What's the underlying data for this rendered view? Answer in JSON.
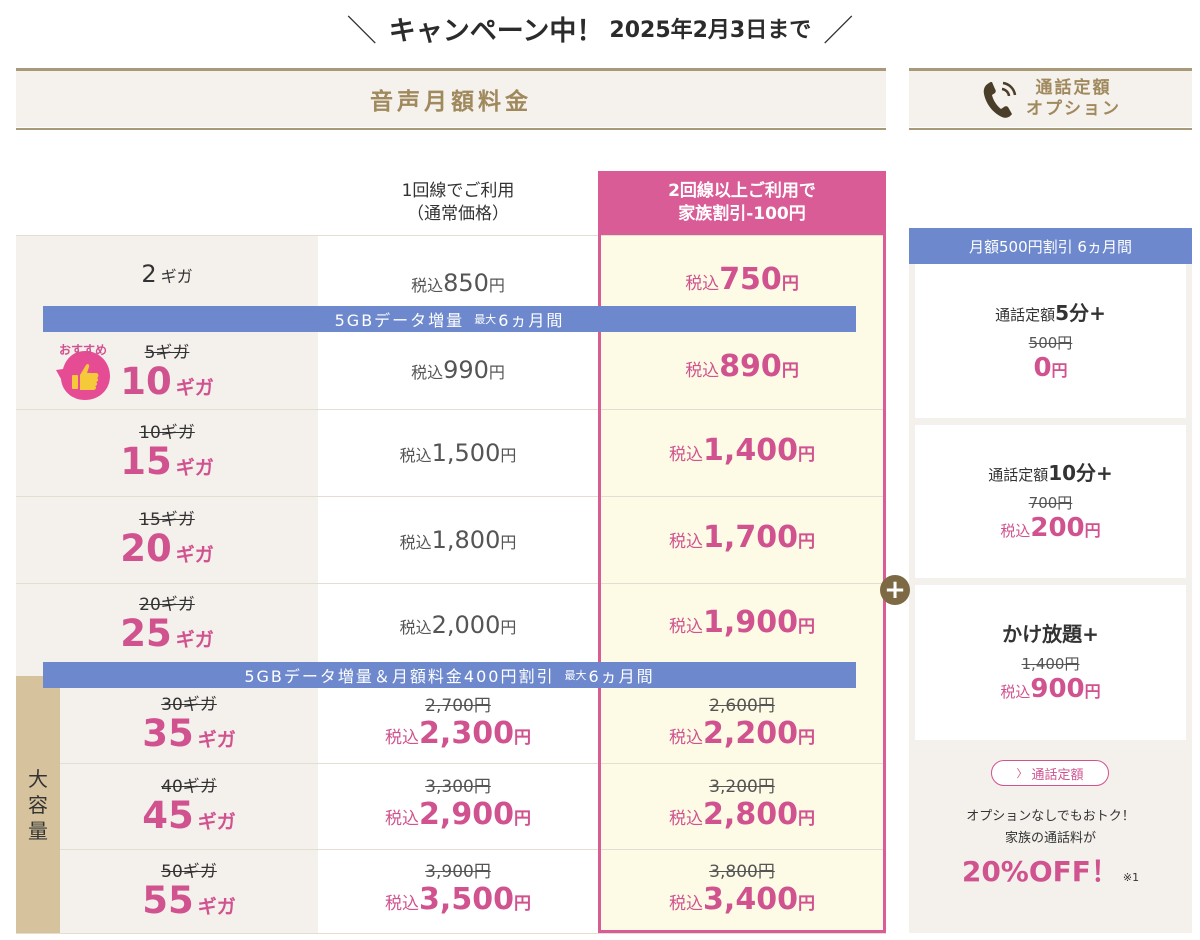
{
  "campaign": {
    "slash_left": "＼",
    "text": "キャンペーン中！",
    "date": "2025年2月3日まで",
    "slash_right": "／"
  },
  "headers": {
    "plan": "音声月額料金",
    "option_line1": "通話定額",
    "option_line2": "オプション"
  },
  "columns": {
    "single_line1": "1回線でご利用",
    "single_line2": "（通常価格）",
    "family_line1": "2回線以上ご利用で",
    "family_line2": "家族割引-100円"
  },
  "banners": {
    "b1_main": "5GBデータ増量",
    "b1_small": "最大",
    "b1_tail": "6ヵ月間",
    "b2_main": "5GBデータ増量＆月額料金400円割引",
    "b2_small": "最大",
    "b2_tail": "6ヵ月間"
  },
  "labels": {
    "recommend": "おすすめ",
    "large": [
      "大",
      "容",
      "量"
    ],
    "tax_in": "税込",
    "yen": "円",
    "giga": "ギガ"
  },
  "plans": [
    {
      "old_gb": "",
      "gb": "2",
      "price": "850",
      "price_old": "",
      "family": "750",
      "family_old": ""
    },
    {
      "old_gb": "5ギガ",
      "gb": "10",
      "price": "990",
      "price_old": "",
      "family": "890",
      "family_old": ""
    },
    {
      "old_gb": "10ギガ",
      "gb": "15",
      "price": "1,500",
      "price_old": "",
      "family": "1,400",
      "family_old": ""
    },
    {
      "old_gb": "15ギガ",
      "gb": "20",
      "price": "1,800",
      "price_old": "",
      "family": "1,700",
      "family_old": ""
    },
    {
      "old_gb": "20ギガ",
      "gb": "25",
      "price": "2,000",
      "price_old": "",
      "family": "1,900",
      "family_old": ""
    },
    {
      "old_gb": "30ギガ",
      "gb": "35",
      "price": "2,300",
      "price_old": "2,700円",
      "family": "2,200",
      "family_old": "2,600円"
    },
    {
      "old_gb": "40ギガ",
      "gb": "45",
      "price": "2,900",
      "price_old": "3,300円",
      "family": "2,800",
      "family_old": "3,200円"
    },
    {
      "old_gb": "50ギガ",
      "gb": "55",
      "price": "3,500",
      "price_old": "3,900円",
      "family": "3,400",
      "family_old": "3,800円"
    }
  ],
  "options": {
    "tag": "月額500円割引 6ヵ月間",
    "items": [
      {
        "name_pre": "通話定額",
        "name_bold": "5分+",
        "old": "500円",
        "tax": "",
        "price": "0",
        "unit": "円"
      },
      {
        "name_pre": "通話定額",
        "name_bold": "10分+",
        "old": "700円",
        "tax": "税込",
        "price": "200",
        "unit": "円"
      },
      {
        "name_pre": "",
        "name_bold": "かけ放題+",
        "old": "1,400円",
        "tax": "税込",
        "price": "900",
        "unit": "円"
      }
    ],
    "plus": "+",
    "teigaku_button": "通話定額",
    "teigaku_chevron": "〉",
    "note_line1": "オプションなしでもおトク！",
    "note_line2": "家族の通話料が",
    "note_big": "20%OFF！",
    "note_mark": "※1"
  },
  "colors": {
    "accent_pink": "#d95c97",
    "price_pink": "#d0528f",
    "banner_blue": "#6d88cc",
    "header_gold": "#a0895c",
    "large_tag": "#d6c39d"
  }
}
